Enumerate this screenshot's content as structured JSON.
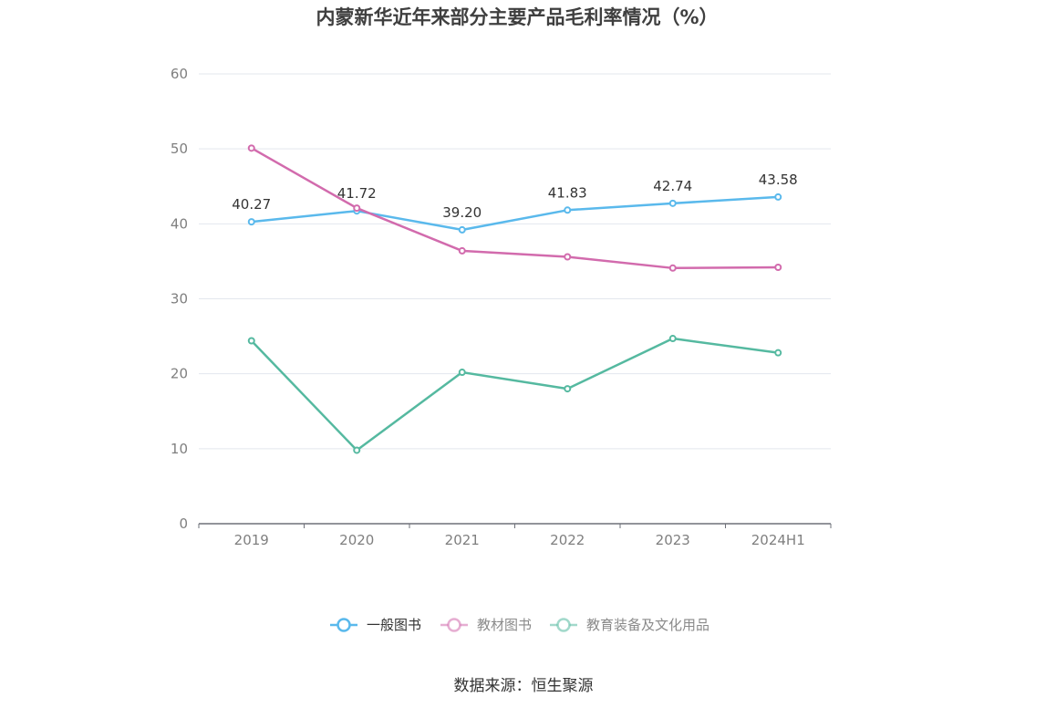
{
  "chart_data": {
    "type": "line",
    "title": "内蒙新华近年来部分主要产品毛利率情况（%）",
    "categories": [
      "2019",
      "2020",
      "2021",
      "2022",
      "2023",
      "2024H1"
    ],
    "ylim": [
      0,
      60
    ],
    "yticks": [
      "0",
      "10",
      "20",
      "30",
      "40",
      "50",
      "60"
    ],
    "grid": true,
    "legend_position": "bottom",
    "series": [
      {
        "name": "一般图书",
        "color": "#5ab9ec",
        "values": [
          40.27,
          41.72,
          39.2,
          41.83,
          42.74,
          43.58
        ],
        "labels": [
          "40.27",
          "41.72",
          "39.20",
          "41.83",
          "42.74",
          "43.58"
        ],
        "legend_text_color": "#333333"
      },
      {
        "name": "教材图书",
        "color": "#d26bad",
        "values": [
          50.1,
          42.1,
          36.4,
          35.6,
          34.1,
          34.2
        ],
        "labels": [],
        "legend_text_color": "#8a8a8a"
      },
      {
        "name": "教育装备及文化用品",
        "color": "#55b9a0",
        "values": [
          24.4,
          9.8,
          20.2,
          18.0,
          24.7,
          22.8
        ],
        "labels": [],
        "legend_text_color": "#8a8a8a"
      }
    ]
  },
  "source": "数据来源：恒生聚源"
}
